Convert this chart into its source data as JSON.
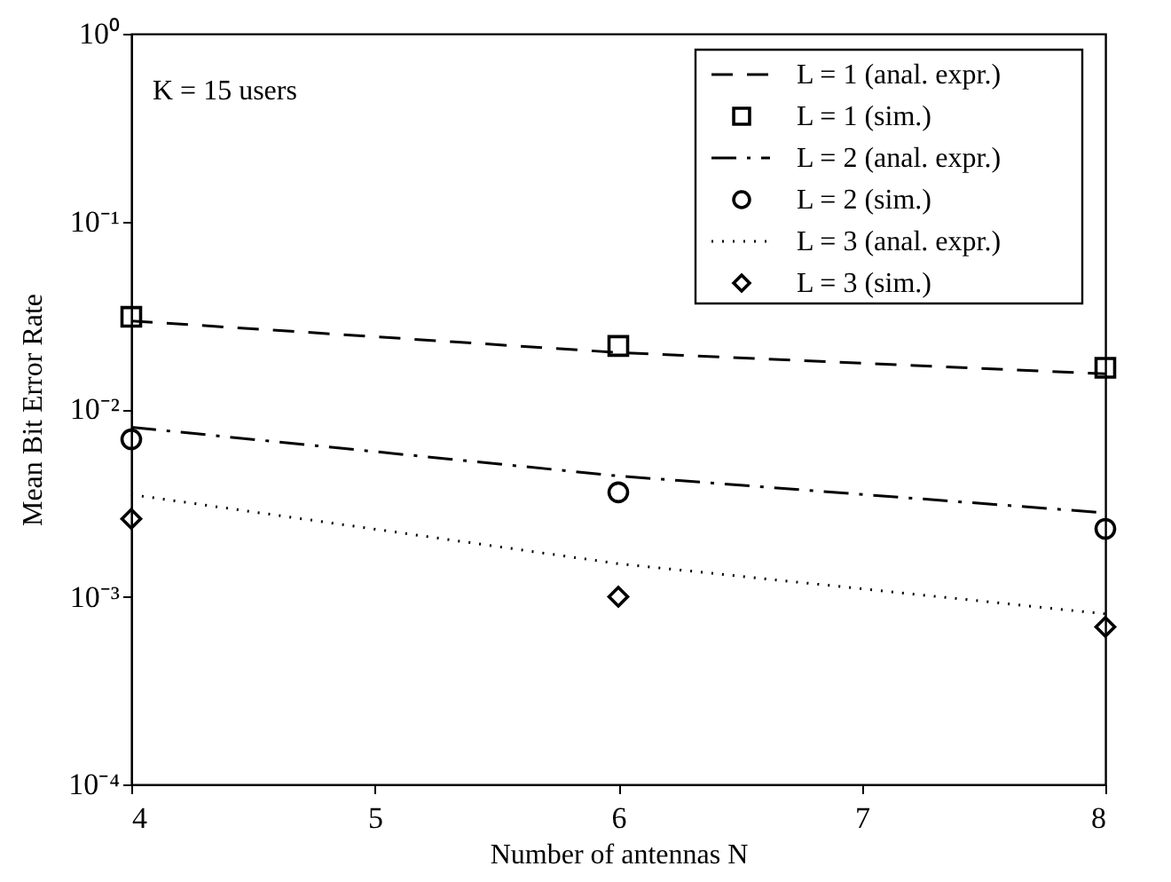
{
  "chart_data": {
    "type": "line",
    "xlabel": "Number of antennas  N",
    "ylabel": "Mean Bit Error Rate",
    "xlim": [
      4,
      8
    ],
    "xticks": [
      4,
      5,
      6,
      7,
      8
    ],
    "ylim": [
      0.0001,
      1
    ],
    "yticks": [
      {
        "value": 0.0001,
        "label": "10⁻⁴"
      },
      {
        "value": 0.001,
        "label": "10⁻³"
      },
      {
        "value": 0.01,
        "label": "10⁻²"
      },
      {
        "value": 0.1,
        "label": "10⁻¹"
      },
      {
        "value": 1,
        "label": "10⁰"
      }
    ],
    "log": "y",
    "grid": false,
    "legend": "top right",
    "annotations": [
      "K = 15 users"
    ],
    "series": [
      {
        "name": "L = 1 (anal. expr.)",
        "line_style": "dashed",
        "color": "#000000",
        "x": [
          4,
          6,
          8
        ],
        "values": [
          0.0295,
          0.02,
          0.0154
        ]
      },
      {
        "name": "L = 1 (sim.)",
        "type": "scatter",
        "marker": "square",
        "color": "#000000",
        "x": [
          4,
          6,
          8
        ],
        "values": [
          0.031,
          0.0217,
          0.0166
        ]
      },
      {
        "name": "L = 2 (anal. expr.)",
        "line_style": "dashdot",
        "color": "#000000",
        "x": [
          4,
          6,
          8
        ],
        "values": [
          0.008,
          0.0044,
          0.0028
        ]
      },
      {
        "name": "L = 2 (sim.)",
        "type": "scatter",
        "marker": "circle",
        "color": "#000000",
        "x": [
          4,
          6,
          8
        ],
        "values": [
          0.0069,
          0.0036,
          0.0023
        ]
      },
      {
        "name": "L = 3 (anal. expr.)",
        "line_style": "dotted",
        "color": "#000000",
        "x": [
          4,
          6,
          8
        ],
        "values": [
          0.0035,
          0.0015,
          0.00081
        ]
      },
      {
        "name": "L = 3 (sim.)",
        "type": "scatter",
        "marker": "diamond",
        "color": "#000000",
        "x": [
          4,
          6,
          8
        ],
        "values": [
          0.0026,
          0.001,
          0.00069
        ]
      }
    ]
  }
}
